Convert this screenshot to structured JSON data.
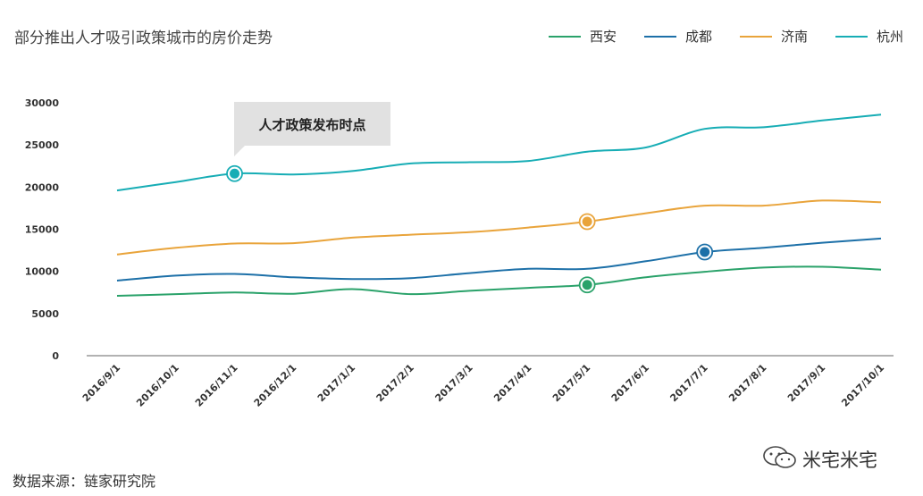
{
  "chart_data": {
    "type": "line",
    "title": "部分推出人才吸引政策城市的房价走势",
    "xlabel": "",
    "ylabel": "",
    "ylim": [
      0,
      30000
    ],
    "yticks": [
      0,
      5000,
      10000,
      15000,
      20000,
      25000,
      30000
    ],
    "grid": false,
    "legend_position": "top-right",
    "categories": [
      "2016/9/1",
      "2016/10/1",
      "2016/11/1",
      "2016/12/1",
      "2017/1/1",
      "2017/2/1",
      "2017/3/1",
      "2017/4/1",
      "2017/5/1",
      "2017/6/1",
      "2017/7/1",
      "2017/8/1",
      "2017/9/1",
      "2017/10/1"
    ],
    "series": [
      {
        "name": "西安",
        "color": "#2aa26a",
        "values": [
          7100,
          7300,
          7500,
          7350,
          7900,
          7300,
          7700,
          8050,
          8400,
          9300,
          9950,
          10450,
          10550,
          10200
        ],
        "marker_index": 8
      },
      {
        "name": "成都",
        "color": "#1d70a8",
        "values": [
          8900,
          9500,
          9700,
          9300,
          9100,
          9200,
          9800,
          10300,
          10300,
          11200,
          12300,
          12800,
          13400,
          13900
        ],
        "marker_index": 10
      },
      {
        "name": "济南",
        "color": "#e9a43b",
        "values": [
          12000,
          12800,
          13300,
          13350,
          14000,
          14350,
          14650,
          15200,
          15900,
          16900,
          17800,
          17800,
          18400,
          18200
        ],
        "marker_index": 8
      },
      {
        "name": "杭州",
        "color": "#17adb5",
        "values": [
          19600,
          20600,
          21600,
          21500,
          21900,
          22800,
          22950,
          23100,
          24200,
          24700,
          26900,
          27100,
          27900,
          28600
        ],
        "marker_index": 2
      }
    ],
    "annotations": [
      {
        "text": "人才政策发布时点",
        "series": "杭州",
        "x": "2016/11/1"
      }
    ]
  },
  "footer": {
    "source": "数据来源：链家研究院",
    "watermark": "米宅米宅"
  }
}
